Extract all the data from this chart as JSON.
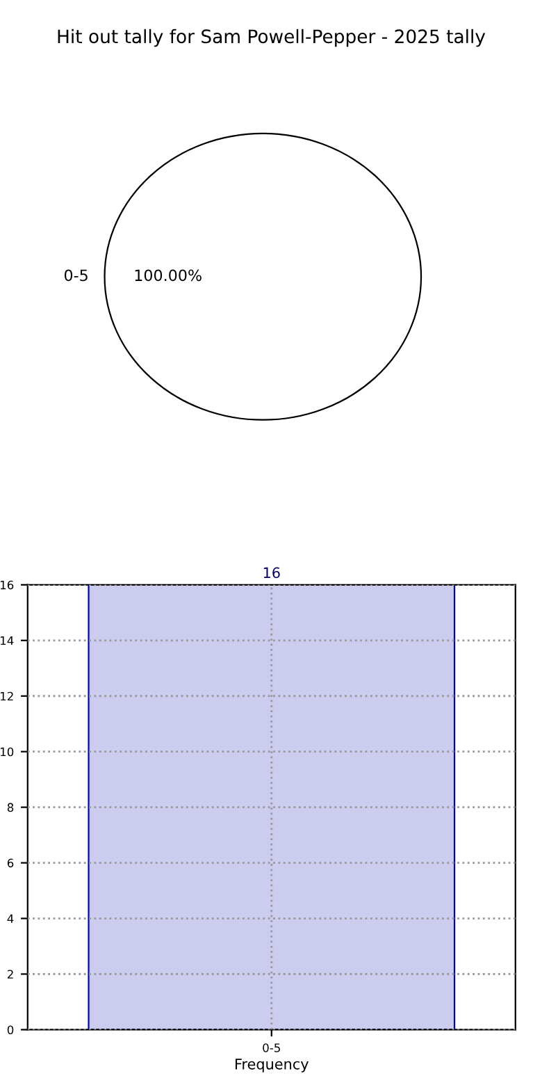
{
  "chart_data": [
    {
      "type": "pie",
      "title": "Hit out tally for Sam Powell-Pepper - 2025 tally",
      "categories": [
        "0-5"
      ],
      "values": [
        100
      ],
      "colors": [
        "#ffffff"
      ],
      "value_labels": [
        "100.00%"
      ]
    },
    {
      "type": "bar",
      "categories": [
        "0-5"
      ],
      "values": [
        16
      ],
      "color": "#ccccee",
      "xlabel": "Frequency",
      "ylim": [
        0,
        16
      ],
      "yticks": [
        0,
        2,
        4,
        6,
        8,
        10,
        12,
        14,
        16
      ],
      "grid": true,
      "data_labels": true
    }
  ]
}
